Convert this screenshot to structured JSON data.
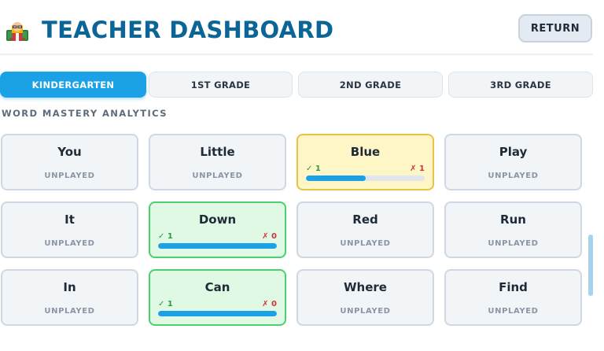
{
  "header": {
    "logo_icon": "teacher-icon",
    "title": "TEACHER DASHBOARD",
    "return_label": "RETURN"
  },
  "tabs": [
    {
      "label": "KINDERGARTEN",
      "active": true
    },
    {
      "label": "1ST GRADE",
      "active": false
    },
    {
      "label": "2ND GRADE",
      "active": false
    },
    {
      "label": "3RD GRADE",
      "active": false
    }
  ],
  "section": {
    "label": "WORD MASTERY ANALYTICS"
  },
  "words": [
    {
      "word": "You",
      "state": "unplayed",
      "status": "UNPLAYED"
    },
    {
      "word": "Little",
      "state": "unplayed",
      "status": "UNPLAYED"
    },
    {
      "word": "Blue",
      "state": "partial",
      "correct": "✓ 1",
      "wrong": "✗ 1",
      "progress": 0.5
    },
    {
      "word": "Play",
      "state": "unplayed",
      "status": "UNPLAYED"
    },
    {
      "word": "It",
      "state": "unplayed",
      "status": "UNPLAYED"
    },
    {
      "word": "Down",
      "state": "mastered",
      "correct": "✓ 1",
      "wrong": "✗ 0",
      "progress": 1.0
    },
    {
      "word": "Red",
      "state": "unplayed",
      "status": "UNPLAYED"
    },
    {
      "word": "Run",
      "state": "unplayed",
      "status": "UNPLAYED"
    },
    {
      "word": "In",
      "state": "unplayed",
      "status": "UNPLAYED"
    },
    {
      "word": "Can",
      "state": "mastered",
      "correct": "✓ 1",
      "wrong": "✗ 0",
      "progress": 1.0
    },
    {
      "word": "Where",
      "state": "unplayed",
      "status": "UNPLAYED"
    },
    {
      "word": "Find",
      "state": "unplayed",
      "status": "UNPLAYED"
    }
  ],
  "colors": {
    "title": "#0b6597",
    "accent": "#1ba2e6",
    "mastered_bg": "#dff9e5",
    "mastered_border": "#4bcf6f",
    "partial_bg": "#fff6c7",
    "partial_border": "#e7c53e",
    "correct": "#2e9a45",
    "wrong": "#d1343a"
  }
}
